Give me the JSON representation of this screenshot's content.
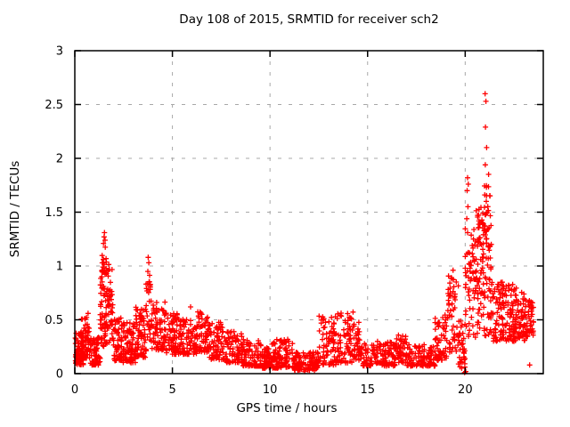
{
  "window": {
    "background": "#ffffff"
  },
  "chart_data": {
    "type": "scatter",
    "title": "Day 108 of 2015, SRMTID for receiver sch2",
    "xlabel": "GPS time / hours",
    "ylabel": "SRMTID / TECUs",
    "series_name": "SRMTID",
    "marker": "plus",
    "marker_color": "#ff0000",
    "grid_color": "#a8a8a8",
    "axis_color": "#000000",
    "grid": true,
    "legend": "none",
    "xlim": [
      0,
      24
    ],
    "ylim": [
      0,
      3
    ],
    "xticks": {
      "values": [
        0,
        5,
        10,
        15,
        20
      ],
      "labels": [
        "0",
        "5",
        "10",
        "15",
        "20"
      ]
    },
    "yticks": {
      "values": [
        0,
        0.5,
        1,
        1.5,
        2,
        2.5,
        3
      ],
      "labels": [
        "0",
        "0.5",
        "1",
        "1.5",
        "2",
        "2.5",
        "3"
      ]
    },
    "envelope_segments": [
      [
        0.0,
        0.45,
        0.08,
        0.38,
        70,
        1.4
      ],
      [
        0.3,
        0.75,
        0.14,
        0.56,
        60,
        1.4
      ],
      [
        0.75,
        1.3,
        0.08,
        0.34,
        70,
        1.4
      ],
      [
        1.3,
        1.62,
        0.25,
        1.08,
        55,
        1.1
      ],
      [
        1.38,
        1.62,
        0.92,
        1.18,
        14,
        1.0
      ],
      [
        1.62,
        1.95,
        0.28,
        1.02,
        45,
        1.3
      ],
      [
        1.95,
        2.45,
        0.12,
        0.52,
        65,
        1.5
      ],
      [
        2.45,
        3.1,
        0.1,
        0.48,
        80,
        1.5
      ],
      [
        3.1,
        3.65,
        0.15,
        0.62,
        70,
        1.5
      ],
      [
        3.65,
        3.95,
        0.3,
        0.92,
        30,
        1.1
      ],
      [
        3.95,
        4.7,
        0.22,
        0.68,
        75,
        1.5
      ],
      [
        4.7,
        5.4,
        0.18,
        0.56,
        75,
        1.5
      ],
      [
        5.4,
        6.3,
        0.18,
        0.52,
        85,
        1.5
      ],
      [
        6.3,
        6.9,
        0.2,
        0.58,
        60,
        1.5
      ],
      [
        6.9,
        7.7,
        0.13,
        0.48,
        75,
        1.5
      ],
      [
        7.7,
        8.6,
        0.1,
        0.4,
        80,
        1.5
      ],
      [
        8.6,
        9.6,
        0.07,
        0.32,
        85,
        1.5
      ],
      [
        9.6,
        10.1,
        0.05,
        0.24,
        50,
        1.5
      ],
      [
        10.1,
        11.2,
        0.05,
        0.32,
        100,
        1.6
      ],
      [
        11.2,
        12.5,
        0.03,
        0.2,
        110,
        1.5
      ],
      [
        12.5,
        13.4,
        0.08,
        0.54,
        75,
        1.6
      ],
      [
        13.4,
        14.3,
        0.1,
        0.58,
        75,
        1.6
      ],
      [
        14.3,
        14.7,
        0.12,
        0.48,
        40,
        1.4
      ],
      [
        14.7,
        16.4,
        0.07,
        0.3,
        140,
        1.5
      ],
      [
        16.4,
        17.0,
        0.1,
        0.38,
        55,
        1.4
      ],
      [
        17.0,
        18.45,
        0.07,
        0.28,
        115,
        1.4
      ],
      [
        18.45,
        19.05,
        0.12,
        0.55,
        60,
        1.3
      ],
      [
        19.05,
        19.65,
        0.2,
        0.92,
        55,
        1.2
      ],
      [
        19.65,
        20.0,
        0.06,
        0.5,
        35,
        1.3
      ],
      [
        20.0,
        20.55,
        0.32,
        1.35,
        60,
        1.2
      ],
      [
        20.55,
        21.35,
        0.35,
        1.55,
        115,
        1.2
      ],
      [
        20.9,
        21.3,
        1.0,
        1.95,
        22,
        1.0
      ],
      [
        21.35,
        22.45,
        0.3,
        0.85,
        120,
        1.3
      ],
      [
        22.45,
        23.2,
        0.3,
        0.8,
        90,
        1.3
      ],
      [
        23.2,
        23.5,
        0.35,
        0.68,
        35,
        1.2
      ]
    ],
    "outlier_points": [
      [
        1.52,
        1.31
      ],
      [
        1.5,
        1.27
      ],
      [
        1.55,
        1.24
      ],
      [
        1.47,
        1.21
      ],
      [
        3.76,
        1.08
      ],
      [
        3.79,
        1.03
      ],
      [
        3.74,
        0.95
      ],
      [
        5.93,
        0.62
      ],
      [
        19.38,
        0.96
      ],
      [
        19.32,
        0.88
      ],
      [
        20.12,
        1.82
      ],
      [
        20.16,
        1.76
      ],
      [
        20.1,
        1.7
      ],
      [
        20.14,
        1.55
      ],
      [
        20.08,
        1.44
      ],
      [
        20.12,
        1.31
      ],
      [
        21.02,
        2.6
      ],
      [
        21.06,
        2.53
      ],
      [
        21.04,
        2.29
      ],
      [
        21.1,
        2.1
      ],
      [
        21.03,
        1.94
      ],
      [
        21.0,
        1.66
      ],
      [
        21.08,
        1.6
      ],
      [
        21.12,
        1.5
      ],
      [
        21.02,
        1.37
      ],
      [
        11.78,
        0.02
      ],
      [
        11.84,
        0.04
      ],
      [
        12.28,
        0.03
      ],
      [
        19.97,
        0.01
      ],
      [
        20.03,
        0.02
      ],
      [
        19.82,
        0.05
      ],
      [
        23.3,
        0.08
      ]
    ]
  }
}
